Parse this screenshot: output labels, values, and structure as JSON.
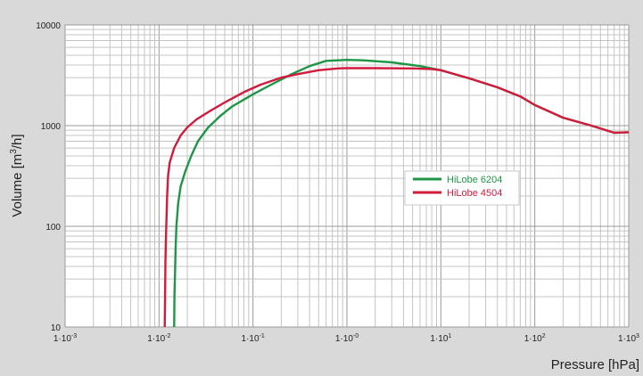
{
  "chart_data": {
    "type": "line",
    "title": "",
    "xlabel": "Pressure [hPa]",
    "ylabel_main": "Volume [m",
    "ylabel_sup": "3",
    "ylabel_end": "/h]",
    "x_scale": "log",
    "y_scale": "log",
    "xlim": [
      0.001,
      1000
    ],
    "ylim": [
      10,
      10000
    ],
    "grid": true,
    "legend_position": "center-right",
    "x_ticks": [
      {
        "value": 0.001,
        "base": "1·10",
        "exp": "-3"
      },
      {
        "value": 0.01,
        "base": "1·10",
        "exp": "-2"
      },
      {
        "value": 0.1,
        "base": "1·10",
        "exp": "-1"
      },
      {
        "value": 1,
        "base": "1·10",
        "exp": "-0"
      },
      {
        "value": 10,
        "base": "1·10",
        "exp": "1"
      },
      {
        "value": 100,
        "base": "1·10",
        "exp": "2"
      },
      {
        "value": 1000,
        "base": "1·10",
        "exp": "3"
      }
    ],
    "y_ticks": [
      {
        "value": 10,
        "label": "10"
      },
      {
        "value": 100,
        "label": "100"
      },
      {
        "value": 1000,
        "label": "1000"
      },
      {
        "value": 10000,
        "label": "10000"
      }
    ],
    "series": [
      {
        "name": "HiLobe 6204",
        "color": "#1e9645",
        "points": [
          [
            0.0145,
            10
          ],
          [
            0.0146,
            20
          ],
          [
            0.0148,
            35
          ],
          [
            0.015,
            60
          ],
          [
            0.0153,
            100
          ],
          [
            0.016,
            170
          ],
          [
            0.017,
            250
          ],
          [
            0.019,
            350
          ],
          [
            0.022,
            500
          ],
          [
            0.026,
            700
          ],
          [
            0.033,
            950
          ],
          [
            0.045,
            1250
          ],
          [
            0.06,
            1550
          ],
          [
            0.1,
            2050
          ],
          [
            0.15,
            2500
          ],
          [
            0.25,
            3200
          ],
          [
            0.4,
            3900
          ],
          [
            0.6,
            4400
          ],
          [
            1,
            4500
          ],
          [
            1.5,
            4450
          ],
          [
            3,
            4250
          ],
          [
            6,
            3900
          ],
          [
            10,
            3550
          ],
          [
            20,
            2950
          ],
          [
            40,
            2400
          ],
          [
            70,
            1950
          ],
          [
            100,
            1600
          ],
          [
            200,
            1200
          ],
          [
            400,
            1000
          ],
          [
            700,
            850
          ],
          [
            1000,
            860
          ]
        ]
      },
      {
        "name": "HiLobe 4504",
        "color": "#d21a3c",
        "points": [
          [
            0.0115,
            10
          ],
          [
            0.0116,
            20
          ],
          [
            0.0117,
            45
          ],
          [
            0.0119,
            90
          ],
          [
            0.0122,
            200
          ],
          [
            0.0125,
            320
          ],
          [
            0.013,
            430
          ],
          [
            0.0145,
            600
          ],
          [
            0.017,
            800
          ],
          [
            0.02,
            960
          ],
          [
            0.025,
            1150
          ],
          [
            0.035,
            1400
          ],
          [
            0.05,
            1700
          ],
          [
            0.08,
            2150
          ],
          [
            0.12,
            2550
          ],
          [
            0.2,
            3000
          ],
          [
            0.3,
            3250
          ],
          [
            0.5,
            3550
          ],
          [
            0.8,
            3700
          ],
          [
            1,
            3720
          ],
          [
            2,
            3720
          ],
          [
            5,
            3700
          ],
          [
            8,
            3650
          ],
          [
            10,
            3550
          ],
          [
            20,
            2950
          ],
          [
            40,
            2400
          ],
          [
            70,
            1950
          ],
          [
            100,
            1600
          ],
          [
            200,
            1200
          ],
          [
            400,
            1000
          ],
          [
            700,
            850
          ],
          [
            1000,
            860
          ]
        ]
      }
    ]
  }
}
